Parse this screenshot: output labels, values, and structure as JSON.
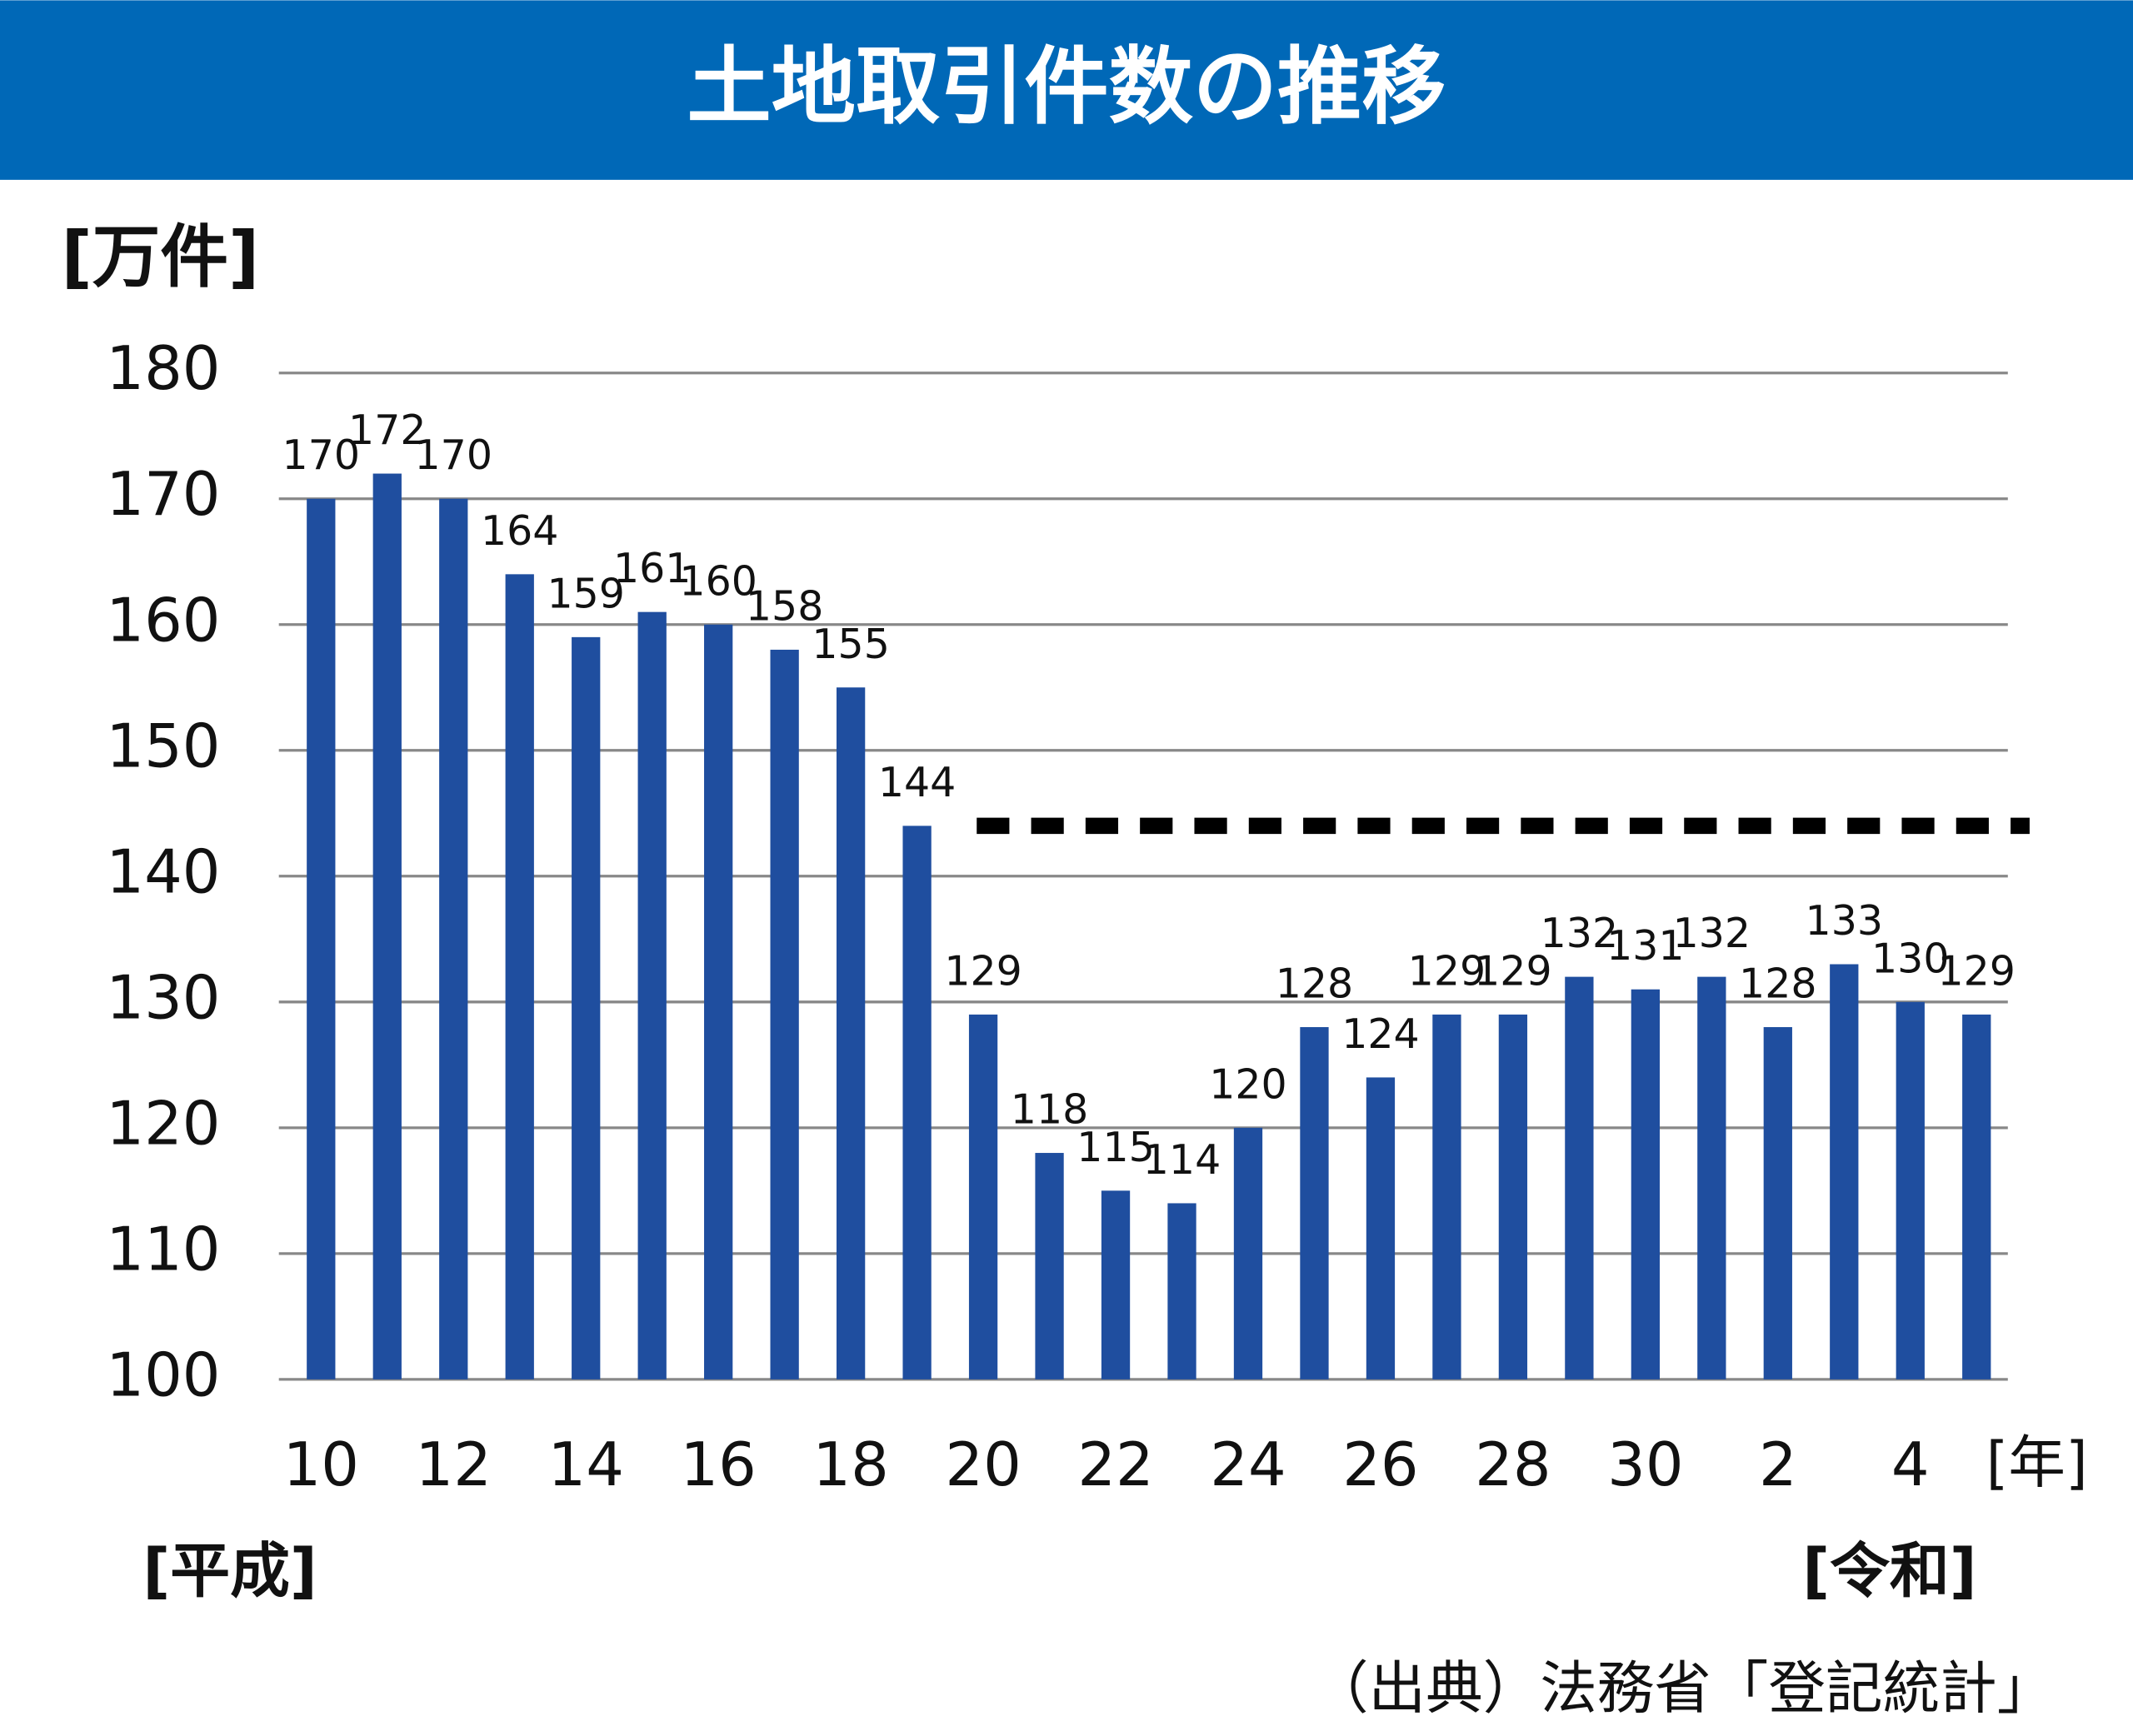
{
  "chart_data": {
    "type": "bar",
    "title": "土地取引件数の推移",
    "y_label": "[万件]",
    "x_label": "[年]",
    "era_labels": [
      "[平成]",
      "[令和]"
    ],
    "source": "（出典）法務省「登記統計」",
    "categories": [
      "10",
      null,
      "12",
      null,
      "14",
      null,
      "16",
      null,
      "18",
      null,
      "20",
      null,
      "22",
      null,
      "24",
      null,
      "26",
      null,
      "28",
      null,
      "30",
      null,
      "2",
      null,
      "4",
      null
    ],
    "values": [
      170,
      172,
      170,
      164,
      159,
      161,
      160,
      158,
      155,
      144,
      129,
      118,
      115,
      114,
      120,
      128,
      124,
      129,
      129,
      132,
      131,
      132,
      128,
      133,
      130,
      129
    ],
    "color": "#1f4e9f",
    "reference_line": 144,
    "ylim": [
      100,
      180
    ],
    "yticks": [
      100,
      110,
      120,
      130,
      140,
      150,
      160,
      170,
      180
    ],
    "grid": true
  }
}
